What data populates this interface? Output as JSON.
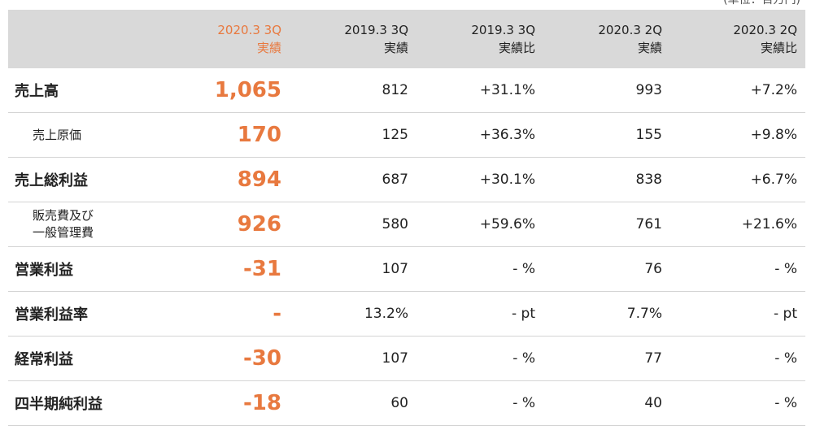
{
  "unit_note": "(単位：百万円)",
  "columns": [
    {
      "line1": "",
      "line2": ""
    },
    {
      "line1": "2020.3 3Q",
      "line2": "実績"
    },
    {
      "line1": "2019.3 3Q",
      "line2": "実績"
    },
    {
      "line1": "2019.3 3Q",
      "line2": "実績比"
    },
    {
      "line1": "2020.3 2Q",
      "line2": "実績"
    },
    {
      "line1": "2020.3 2Q",
      "line2": "実績比"
    }
  ],
  "rows": [
    {
      "label": "売上高",
      "label2": "",
      "sub": false,
      "cur": "1,065",
      "prev": "812",
      "yoy": "+31.1%",
      "q2": "993",
      "qoq": "+7.2%"
    },
    {
      "label": "売上原価",
      "label2": "",
      "sub": true,
      "cur": "170",
      "prev": "125",
      "yoy": "+36.3%",
      "q2": "155",
      "qoq": "+9.8%"
    },
    {
      "label": "売上総利益",
      "label2": "",
      "sub": false,
      "cur": "894",
      "prev": "687",
      "yoy": "+30.1%",
      "q2": "838",
      "qoq": "+6.7%"
    },
    {
      "label": "販売費及び",
      "label2": "一般管理費",
      "sub": true,
      "cur": "926",
      "prev": "580",
      "yoy": "+59.6%",
      "q2": "761",
      "qoq": "+21.6%"
    },
    {
      "label": "営業利益",
      "label2": "",
      "sub": false,
      "cur": "-31",
      "prev": "107",
      "yoy": "- %",
      "q2": "76",
      "qoq": "- %"
    },
    {
      "label": "営業利益率",
      "label2": "",
      "sub": false,
      "cur": "-",
      "prev": "13.2%",
      "yoy": "- pt",
      "q2": "7.7%",
      "qoq": "- pt"
    },
    {
      "label": "経常利益",
      "label2": "",
      "sub": false,
      "cur": "-30",
      "prev": "107",
      "yoy": "- %",
      "q2": "77",
      "qoq": "- %"
    },
    {
      "label": "四半期純利益",
      "label2": "",
      "sub": false,
      "cur": "-18",
      "prev": "60",
      "yoy": "- %",
      "q2": "40",
      "qoq": "- %"
    }
  ],
  "colors": {
    "accent": "#e8793f",
    "header_bg": "#d9d9d9",
    "row_border": "#d4d4d4"
  }
}
